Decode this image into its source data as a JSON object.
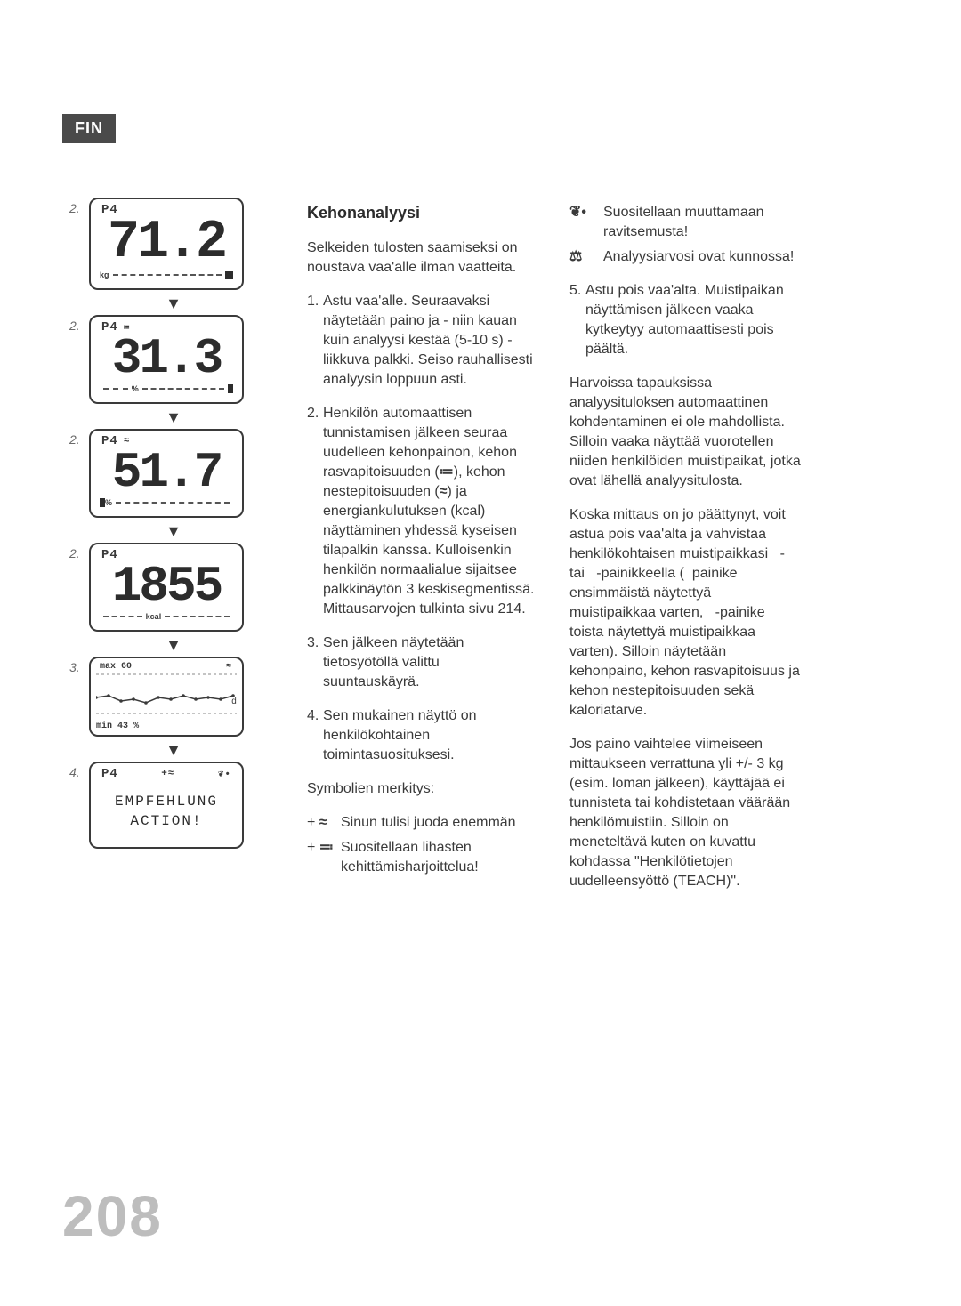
{
  "lang_tab": "FIN",
  "page_number": "208",
  "displays": {
    "profile_label": "P4",
    "d1": {
      "step": "2.",
      "value": "71.2",
      "unit": "kg"
    },
    "d2": {
      "step": "2.",
      "value": "31.3",
      "unit": "%",
      "icon": "fat"
    },
    "d3": {
      "step": "2.",
      "value": "51.7",
      "unit": "%",
      "icon": "water"
    },
    "d4": {
      "step": "2.",
      "value": "1855",
      "unit": "kcal"
    },
    "trend": {
      "step": "3.",
      "max_label": "max",
      "max_value": "60",
      "min_label": "min",
      "min_value": "43",
      "min_unit": "%",
      "day_marker": "d",
      "icon": "water",
      "points": [
        [
          0,
          28
        ],
        [
          14,
          26
        ],
        [
          28,
          32
        ],
        [
          42,
          30
        ],
        [
          56,
          34
        ],
        [
          70,
          28
        ],
        [
          84,
          30
        ],
        [
          98,
          26
        ],
        [
          112,
          30
        ],
        [
          126,
          28
        ],
        [
          140,
          30
        ],
        [
          154,
          26
        ]
      ],
      "chart": {
        "w": 158,
        "h": 48,
        "stroke": "#3a3a3a",
        "dot_r": 1.8
      }
    },
    "reco": {
      "step": "4.",
      "line1": "EMPFEHLUNG",
      "line2": "ACTION!",
      "icon_left": "water-plus",
      "icon_right": "nutrition"
    }
  },
  "center": {
    "heading": "Kehonanalyysi",
    "intro": "Selkeiden tulosten saamiseksi on noustava vaa'alle ilman vaatteita.",
    "step1": "Astu vaa'alle. Seuraavaksi näytetään paino ja - niin kauan kuin analyysi kestää (5-10 s) - liikkuva palkki. Seiso rauhallisesti analyysin loppuun asti.",
    "step2a": "Henkilön automaattisen tunnistamisen jälkeen seuraa uudelleen kehonpainon, kehon rasvapitoisuuden (",
    "step2b": "), kehon nestepitoisuuden (",
    "step2c": ") ja energiankulutuksen (kcal) näyttäminen yhdessä kyseisen tilapalkin kanssa. Kulloisenkin henkilön normaalialue sijaitsee palkkinäytön 3 keskisegmentissä. Mittausarvojen tulkinta sivu 214.",
    "step3": "Sen jälkeen näytetään tietosyötöllä valittu suuntauskäyrä.",
    "step4": "Sen mukainen näyttö on henkilökohtainen toimintasuosituksesi.",
    "symbols_heading": "Symbolien merkitys:",
    "sym_water": "Sinun tulisi juoda enemmän",
    "sym_muscle": "Suositellaan lihasten kehittämisharjoittelua!"
  },
  "right": {
    "sym_nutrition": "Suositellaan muuttamaan ravitsemusta!",
    "sym_ok": "Analyysiarvosi ovat kunnossa!",
    "step5": "Astu pois vaa'alta. Muistipaikan näyttämisen jälkeen vaaka kytkeytyy automaattisesti pois päältä.",
    "para1": "Harvoissa tapauksissa analyysituloksen automaattinen kohdentaminen ei ole mahdollista. Silloin vaaka näyttää vuorotellen niiden henkilöiden muistipaikat, jotka ovat lähellä analyysitulosta.",
    "para2": "Koska mittaus on jo päättynyt, voit astua pois vaa'alta ja vahvistaa henkilökohtaisen muistipaikkasi   - tai   -painikkeella (  painike ensimmäistä näytettyä muistipaikkaa varten,   -painike toista näytettyä muistipaikkaa varten). Silloin näytetään kehonpaino, kehon rasvapitoisuus ja kehon nestepitoisuuden sekä kaloriatarve.",
    "para3": "Jos paino vaihtelee viimeiseen mittaukseen verrattuna yli +/- 3 kg (esim. loman jälkeen), käyttäjää ei tunnisteta tai kohdistetaan väärään henkilömuistiin. Silloin on meneteltävä kuten on kuvattu kohdassa \"Henkilötietojen uudelleensyöttö (TEACH)\"."
  },
  "glyphs": {
    "fat": "≔",
    "water": "≈",
    "water_plus": "+≈",
    "muscle": "≕",
    "nutrition": "❦•",
    "ok": "⚖"
  },
  "colors": {
    "text": "#3a3a3a",
    "pagenum": "#bdbdbd",
    "tab_bg": "#4a4a4a"
  }
}
